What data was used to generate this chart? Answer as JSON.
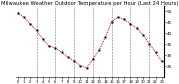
{
  "title": "Milwaukee Weather Outdoor Temperature per Hour (Last 24 Hours)",
  "hours": [
    0,
    1,
    2,
    3,
    4,
    5,
    6,
    7,
    8,
    9,
    10,
    11,
    12,
    13,
    14,
    15,
    16,
    17,
    18,
    19,
    20,
    21,
    22,
    23
  ],
  "temps": [
    49,
    47,
    44,
    41,
    37,
    34,
    33,
    31,
    29,
    27,
    25,
    24,
    28,
    32,
    38,
    45,
    47,
    46,
    44,
    42,
    39,
    35,
    31,
    27
  ],
  "line_color": "#cc0000",
  "marker_color": "#000000",
  "bg_color": "#ffffff",
  "grid_color": "#666666",
  "text_color": "#000000",
  "ylim": [
    20,
    52
  ],
  "yticks": [
    25,
    30,
    35,
    40,
    45,
    50
  ],
  "ytick_labels": [
    "25",
    "30",
    "35",
    "40",
    "45",
    "50"
  ],
  "vgrid_hours": [
    3,
    6,
    9,
    12,
    15,
    18,
    21
  ],
  "title_fontsize": 3.8,
  "tick_fontsize": 3.0,
  "linewidth": 0.7,
  "markersize": 1.4
}
